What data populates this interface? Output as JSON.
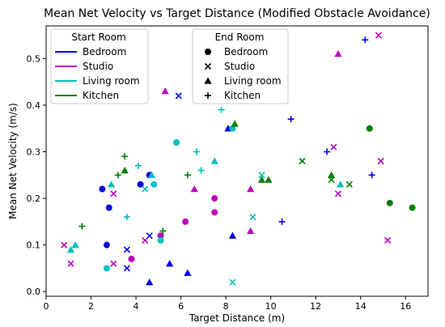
{
  "chart_data": {
    "type": "scatter",
    "title": "Mean Net Velocity vs Target Distance (Modified Obstacle Avoidance)",
    "xlabel": "Target Distance (m)",
    "ylabel": "Mean Net Velocity (m/s)",
    "xlim": [
      0,
      17
    ],
    "ylim": [
      -0.01,
      0.57
    ],
    "xticks": [
      0,
      2,
      4,
      6,
      8,
      10,
      12,
      14,
      16
    ],
    "yticks": [
      0.0,
      0.1,
      0.2,
      0.3,
      0.4,
      0.5
    ],
    "xtick_labels": [
      "0",
      "2",
      "4",
      "6",
      "8",
      "10",
      "12",
      "14",
      "16"
    ],
    "ytick_labels": [
      "0.0",
      "0.1",
      "0.2",
      "0.3",
      "0.4",
      "0.5"
    ],
    "grid": false,
    "colors": {
      "Bedroom": "#0000dd",
      "Studio": "#bb00bb",
      "Living room": "#00bfbf",
      "Kitchen": "#007f00"
    },
    "legend_start": {
      "title": "Start Room",
      "entries": [
        "Bedroom",
        "Studio",
        "Living room",
        "Kitchen"
      ]
    },
    "legend_end": {
      "title": "End Room",
      "entries": [
        {
          "label": "Bedroom",
          "marker": "circle"
        },
        {
          "label": "Studio",
          "marker": "x"
        },
        {
          "label": "Living room",
          "marker": "triangle"
        },
        {
          "label": "Kitchen",
          "marker": "plus"
        }
      ]
    },
    "points": [
      {
        "x": 2.5,
        "y": 0.22,
        "start": "Bedroom",
        "end": "Bedroom"
      },
      {
        "x": 2.8,
        "y": 0.18,
        "start": "Bedroom",
        "end": "Bedroom"
      },
      {
        "x": 2.7,
        "y": 0.1,
        "start": "Bedroom",
        "end": "Bedroom"
      },
      {
        "x": 4.2,
        "y": 0.23,
        "start": "Bedroom",
        "end": "Bedroom"
      },
      {
        "x": 4.6,
        "y": 0.25,
        "start": "Bedroom",
        "end": "Bedroom"
      },
      {
        "x": 5.9,
        "y": 0.42,
        "start": "Bedroom",
        "end": "Studio"
      },
      {
        "x": 3.6,
        "y": 0.09,
        "start": "Bedroom",
        "end": "Studio"
      },
      {
        "x": 3.6,
        "y": 0.05,
        "start": "Bedroom",
        "end": "Studio"
      },
      {
        "x": 4.6,
        "y": 0.12,
        "start": "Bedroom",
        "end": "Studio"
      },
      {
        "x": 4.6,
        "y": 0.02,
        "start": "Bedroom",
        "end": "Living room"
      },
      {
        "x": 5.5,
        "y": 0.06,
        "start": "Bedroom",
        "end": "Living room"
      },
      {
        "x": 6.3,
        "y": 0.04,
        "start": "Bedroom",
        "end": "Living room"
      },
      {
        "x": 8.1,
        "y": 0.35,
        "start": "Bedroom",
        "end": "Living room"
      },
      {
        "x": 8.3,
        "y": 0.12,
        "start": "Bedroom",
        "end": "Living room"
      },
      {
        "x": 10.9,
        "y": 0.37,
        "start": "Bedroom",
        "end": "Kitchen"
      },
      {
        "x": 12.5,
        "y": 0.3,
        "start": "Bedroom",
        "end": "Kitchen"
      },
      {
        "x": 14.2,
        "y": 0.54,
        "start": "Bedroom",
        "end": "Kitchen"
      },
      {
        "x": 14.5,
        "y": 0.25,
        "start": "Bedroom",
        "end": "Kitchen"
      },
      {
        "x": 10.5,
        "y": 0.15,
        "start": "Bedroom",
        "end": "Kitchen"
      },
      {
        "x": 3.8,
        "y": 0.07,
        "start": "Studio",
        "end": "Bedroom"
      },
      {
        "x": 5.1,
        "y": 0.12,
        "start": "Studio",
        "end": "Bedroom"
      },
      {
        "x": 6.2,
        "y": 0.15,
        "start": "Studio",
        "end": "Bedroom"
      },
      {
        "x": 7.5,
        "y": 0.2,
        "start": "Studio",
        "end": "Bedroom"
      },
      {
        "x": 7.5,
        "y": 0.17,
        "start": "Studio",
        "end": "Bedroom"
      },
      {
        "x": 0.8,
        "y": 0.1,
        "start": "Studio",
        "end": "Studio"
      },
      {
        "x": 1.1,
        "y": 0.06,
        "start": "Studio",
        "end": "Studio"
      },
      {
        "x": 3.0,
        "y": 0.06,
        "start": "Studio",
        "end": "Studio"
      },
      {
        "x": 3.0,
        "y": 0.21,
        "start": "Studio",
        "end": "Studio"
      },
      {
        "x": 4.4,
        "y": 0.11,
        "start": "Studio",
        "end": "Studio"
      },
      {
        "x": 12.8,
        "y": 0.31,
        "start": "Studio",
        "end": "Studio"
      },
      {
        "x": 13.0,
        "y": 0.21,
        "start": "Studio",
        "end": "Studio"
      },
      {
        "x": 14.8,
        "y": 0.55,
        "start": "Studio",
        "end": "Studio"
      },
      {
        "x": 14.9,
        "y": 0.28,
        "start": "Studio",
        "end": "Studio"
      },
      {
        "x": 15.2,
        "y": 0.11,
        "start": "Studio",
        "end": "Studio"
      },
      {
        "x": 5.3,
        "y": 0.43,
        "start": "Studio",
        "end": "Living room"
      },
      {
        "x": 6.6,
        "y": 0.22,
        "start": "Studio",
        "end": "Living room"
      },
      {
        "x": 9.1,
        "y": 0.22,
        "start": "Studio",
        "end": "Living room"
      },
      {
        "x": 9.1,
        "y": 0.13,
        "start": "Studio",
        "end": "Living room"
      },
      {
        "x": 13.0,
        "y": 0.51,
        "start": "Studio",
        "end": "Living room"
      },
      {
        "x": 2.7,
        "y": 0.05,
        "start": "Living room",
        "end": "Bedroom"
      },
      {
        "x": 4.8,
        "y": 0.23,
        "start": "Living room",
        "end": "Bedroom"
      },
      {
        "x": 5.1,
        "y": 0.11,
        "start": "Living room",
        "end": "Bedroom"
      },
      {
        "x": 5.8,
        "y": 0.32,
        "start": "Living room",
        "end": "Bedroom"
      },
      {
        "x": 8.3,
        "y": 0.35,
        "start": "Living room",
        "end": "Bedroom"
      },
      {
        "x": 4.4,
        "y": 0.22,
        "start": "Living room",
        "end": "Studio"
      },
      {
        "x": 9.6,
        "y": 0.25,
        "start": "Living room",
        "end": "Studio"
      },
      {
        "x": 9.2,
        "y": 0.16,
        "start": "Living room",
        "end": "Studio"
      },
      {
        "x": 8.3,
        "y": 0.02,
        "start": "Living room",
        "end": "Studio"
      },
      {
        "x": 1.1,
        "y": 0.09,
        "start": "Living room",
        "end": "Living room"
      },
      {
        "x": 1.3,
        "y": 0.1,
        "start": "Living room",
        "end": "Living room"
      },
      {
        "x": 2.9,
        "y": 0.23,
        "start": "Living room",
        "end": "Living room"
      },
      {
        "x": 4.7,
        "y": 0.25,
        "start": "Living room",
        "end": "Living room"
      },
      {
        "x": 7.5,
        "y": 0.28,
        "start": "Living room",
        "end": "Living room"
      },
      {
        "x": 13.1,
        "y": 0.23,
        "start": "Living room",
        "end": "Living room"
      },
      {
        "x": 3.6,
        "y": 0.16,
        "start": "Living room",
        "end": "Kitchen"
      },
      {
        "x": 4.1,
        "y": 0.27,
        "start": "Living room",
        "end": "Kitchen"
      },
      {
        "x": 6.7,
        "y": 0.3,
        "start": "Living room",
        "end": "Kitchen"
      },
      {
        "x": 6.9,
        "y": 0.26,
        "start": "Living room",
        "end": "Kitchen"
      },
      {
        "x": 7.8,
        "y": 0.39,
        "start": "Living room",
        "end": "Kitchen"
      },
      {
        "x": 14.4,
        "y": 0.35,
        "start": "Kitchen",
        "end": "Bedroom"
      },
      {
        "x": 15.3,
        "y": 0.19,
        "start": "Kitchen",
        "end": "Bedroom"
      },
      {
        "x": 16.3,
        "y": 0.18,
        "start": "Kitchen",
        "end": "Bedroom"
      },
      {
        "x": 11.4,
        "y": 0.28,
        "start": "Kitchen",
        "end": "Studio"
      },
      {
        "x": 12.7,
        "y": 0.24,
        "start": "Kitchen",
        "end": "Studio"
      },
      {
        "x": 13.5,
        "y": 0.23,
        "start": "Kitchen",
        "end": "Studio"
      },
      {
        "x": 3.5,
        "y": 0.26,
        "start": "Kitchen",
        "end": "Living room"
      },
      {
        "x": 8.4,
        "y": 0.36,
        "start": "Kitchen",
        "end": "Living room"
      },
      {
        "x": 9.6,
        "y": 0.24,
        "start": "Kitchen",
        "end": "Living room"
      },
      {
        "x": 9.9,
        "y": 0.24,
        "start": "Kitchen",
        "end": "Living room"
      },
      {
        "x": 12.7,
        "y": 0.25,
        "start": "Kitchen",
        "end": "Living room"
      },
      {
        "x": 1.6,
        "y": 0.14,
        "start": "Kitchen",
        "end": "Kitchen"
      },
      {
        "x": 3.2,
        "y": 0.25,
        "start": "Kitchen",
        "end": "Kitchen"
      },
      {
        "x": 3.5,
        "y": 0.29,
        "start": "Kitchen",
        "end": "Kitchen"
      },
      {
        "x": 5.2,
        "y": 0.13,
        "start": "Kitchen",
        "end": "Kitchen"
      },
      {
        "x": 6.3,
        "y": 0.25,
        "start": "Kitchen",
        "end": "Kitchen"
      }
    ]
  }
}
